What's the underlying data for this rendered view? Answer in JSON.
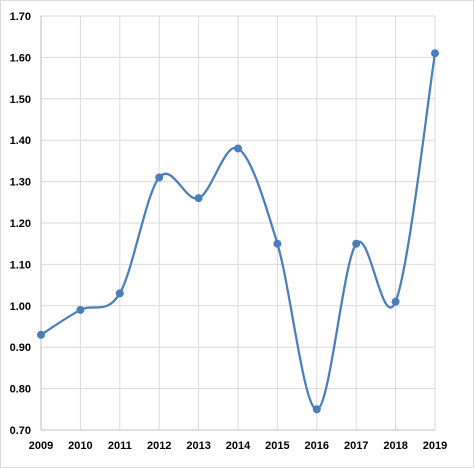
{
  "chart_data": {
    "type": "line",
    "smooth": true,
    "x": [
      "2009",
      "2010",
      "2011",
      "2012",
      "2013",
      "2014",
      "2015",
      "2016",
      "2017",
      "2018",
      "2019"
    ],
    "series": [
      {
        "values": [
          0.93,
          0.99,
          1.03,
          1.31,
          1.26,
          1.38,
          1.15,
          0.75,
          1.15,
          1.01,
          1.61
        ]
      }
    ],
    "ylim": [
      0.7,
      1.7
    ],
    "y_ticks": [
      "0.70",
      "0.80",
      "0.90",
      "1.00",
      "1.10",
      "1.20",
      "1.30",
      "1.40",
      "1.50",
      "1.60",
      "1.70"
    ],
    "grid": "both",
    "legend": "none",
    "title": "",
    "xlabel": "",
    "ylabel": ""
  },
  "colors": {
    "series": "#4a7ebb",
    "grid": "#d9d9d9",
    "axis": "#bfbfbf",
    "text": "#000000"
  }
}
